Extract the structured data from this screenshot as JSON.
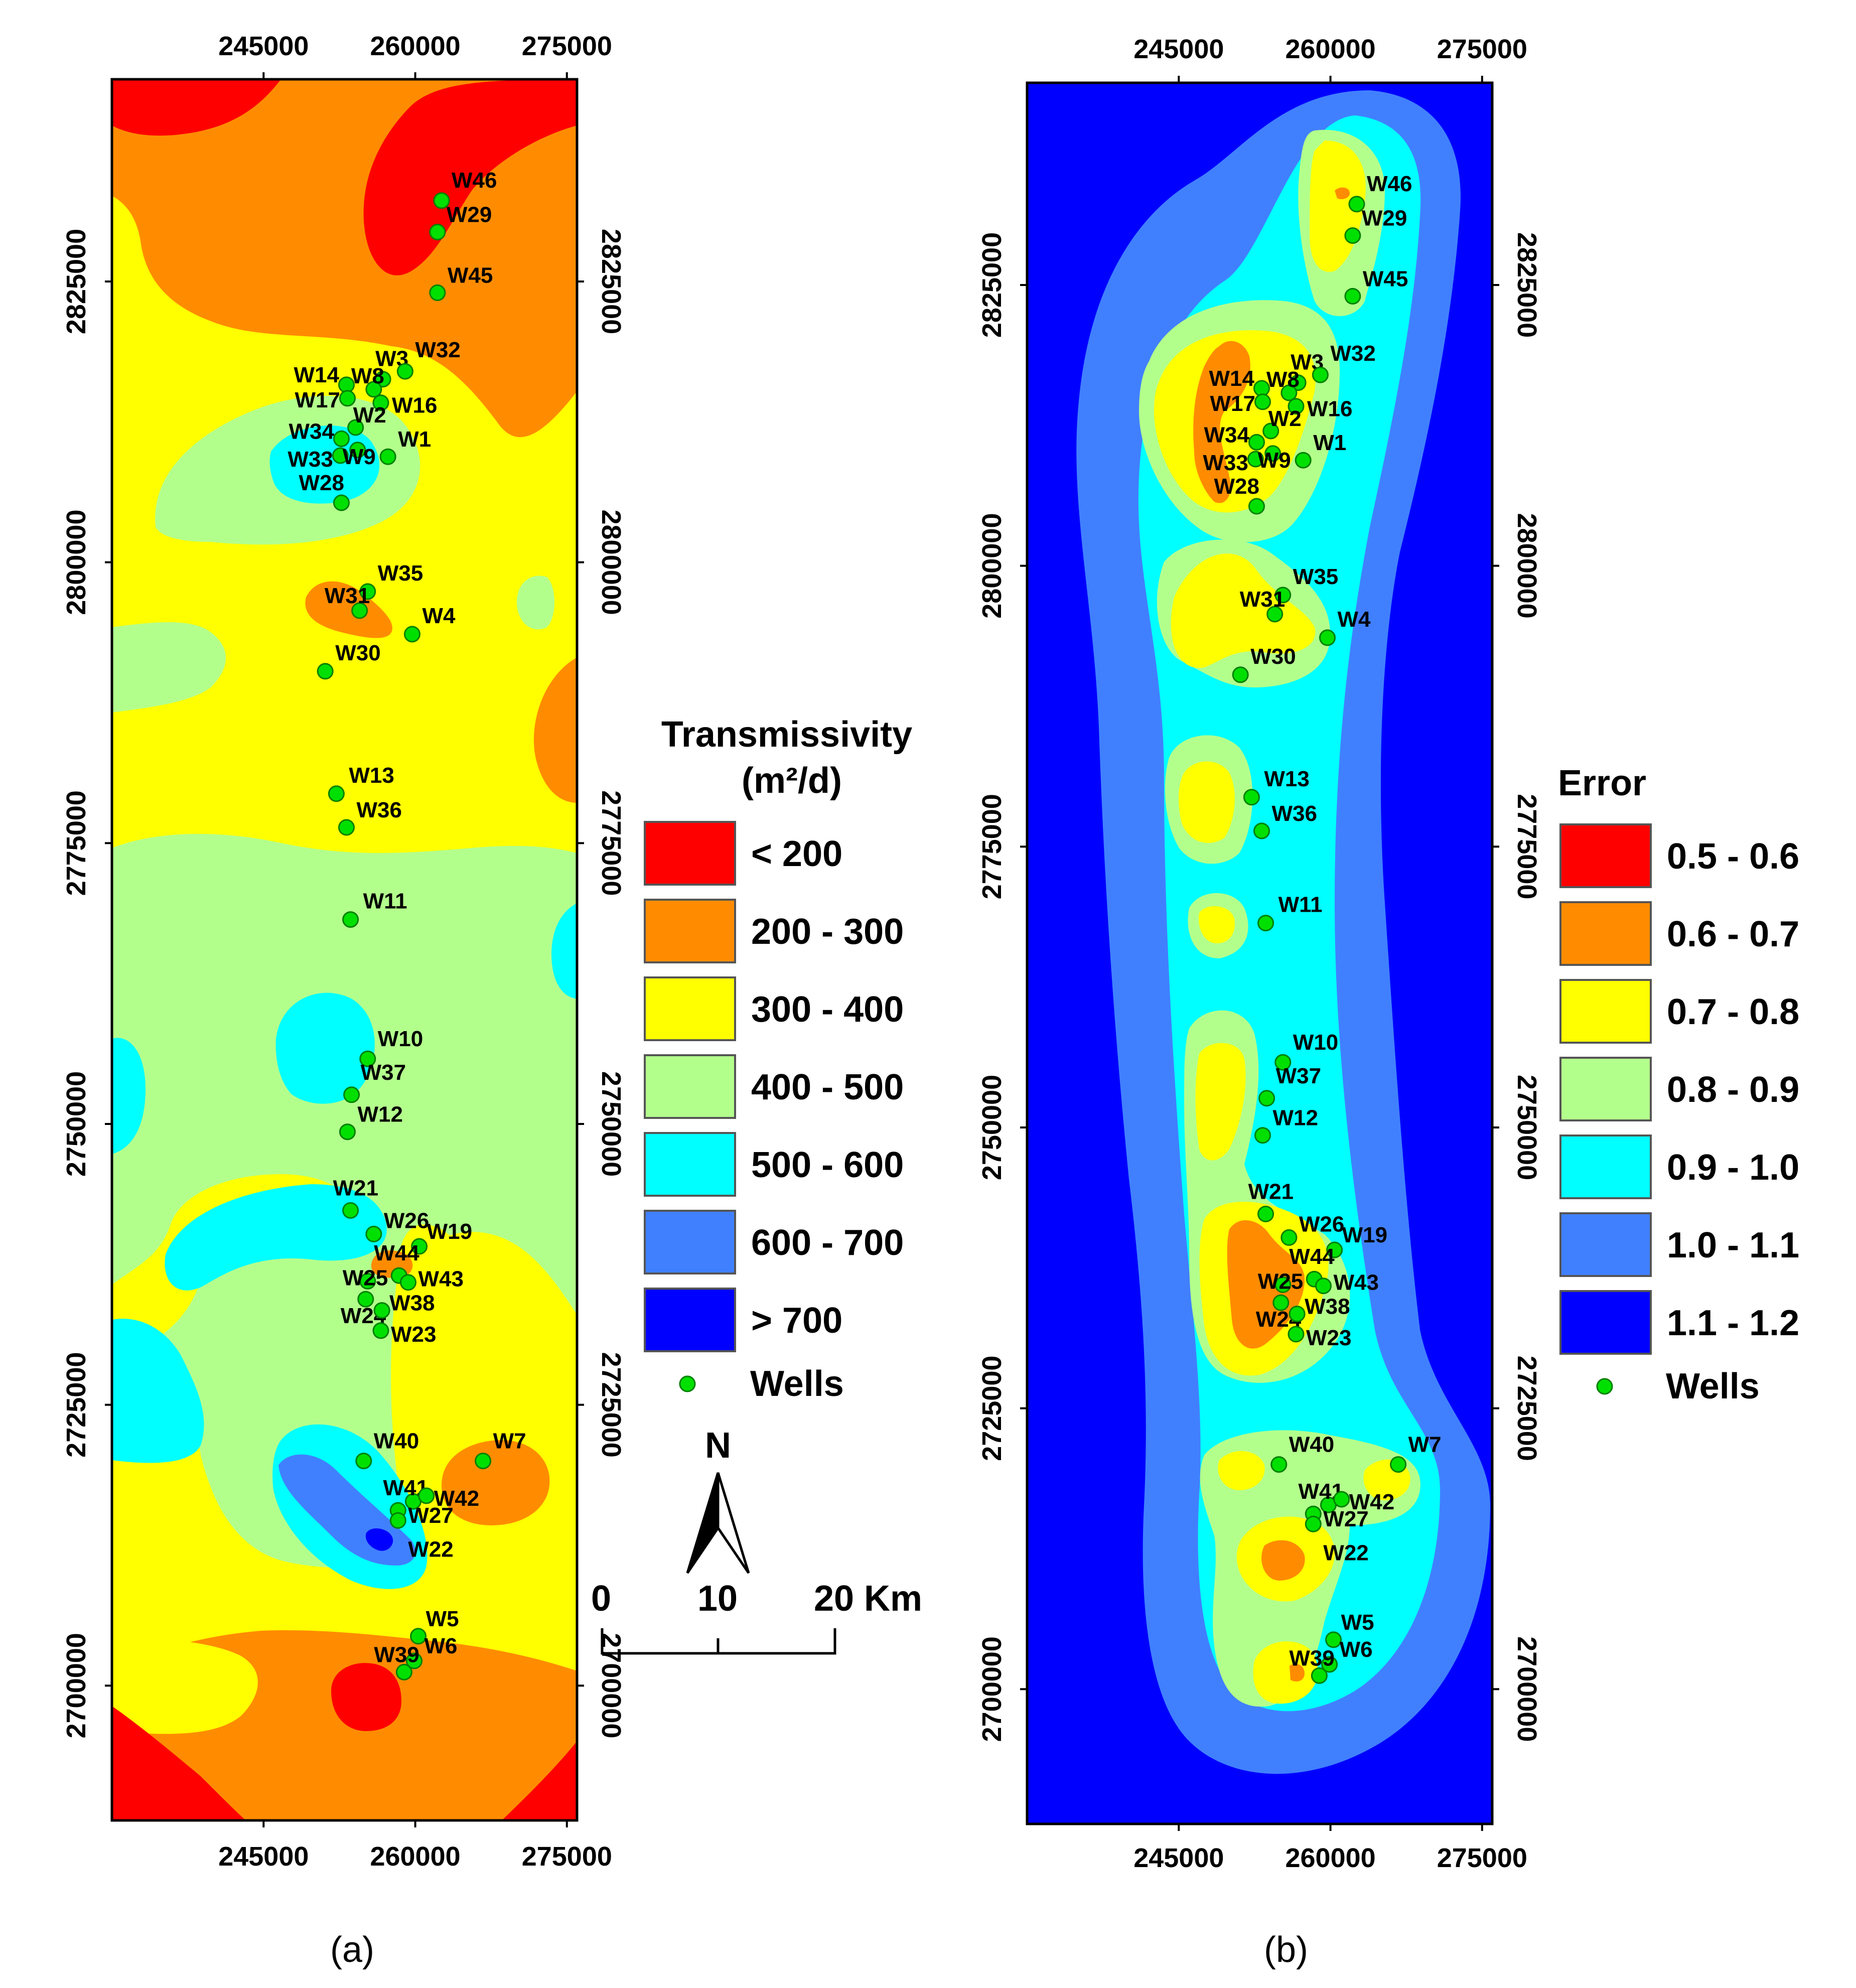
{
  "panels": {
    "a": {
      "caption": "(a)",
      "legend_title_line1": "Transmissivity",
      "legend_title_line2": "(m²/d)",
      "legend": [
        {
          "label": "< 200",
          "color": "#ff0000"
        },
        {
          "label": "200 - 300",
          "color": "#ff8c00"
        },
        {
          "label": "300 - 400",
          "color": "#ffff00"
        },
        {
          "label": "400 - 500",
          "color": "#b3ff8c"
        },
        {
          "label": "500 - 600",
          "color": "#00ffff"
        },
        {
          "label": "600 - 700",
          "color": "#4080ff"
        },
        {
          "label": "> 700",
          "color": "#0000ff"
        }
      ],
      "wells_label": "Wells"
    },
    "b": {
      "caption": "(b)",
      "legend_title": "Error",
      "legend": [
        {
          "label": "0.5 - 0.6",
          "color": "#ff0000"
        },
        {
          "label": "0.6 - 0.7",
          "color": "#ff8c00"
        },
        {
          "label": "0.7 - 0.8",
          "color": "#ffff00"
        },
        {
          "label": "0.8 - 0.9",
          "color": "#b3ff8c"
        },
        {
          "label": "0.9 - 1.0",
          "color": "#00ffff"
        },
        {
          "label": "1.0 - 1.1",
          "color": "#4080ff"
        },
        {
          "label": "1.1 - 1.2",
          "color": "#0000ff"
        }
      ],
      "wells_label": "Wells"
    }
  },
  "axes": {
    "x_ticks": [
      "245000",
      "260000",
      "275000"
    ],
    "y_ticks": [
      "2825000",
      "2800000",
      "2775000",
      "2750000",
      "2725000",
      "2700000"
    ]
  },
  "north_arrow": {
    "label": "N"
  },
  "scale_bar": {
    "labels": [
      "0",
      "10",
      "20 Km"
    ]
  },
  "colors": {
    "well_fill": "#00e000",
    "well_stroke": "#008000"
  },
  "wells": [
    {
      "name": "W46",
      "e": 262600,
      "n": 2832200
    },
    {
      "name": "W29",
      "e": 262200,
      "n": 2829400
    },
    {
      "name": "W45",
      "e": 262200,
      "n": 2824000
    },
    {
      "name": "W3",
      "e": 256800,
      "n": 2816300
    },
    {
      "name": "W32",
      "e": 259000,
      "n": 2817000
    },
    {
      "name": "W14",
      "e": 253200,
      "n": 2815800
    },
    {
      "name": "W8",
      "e": 255900,
      "n": 2815400
    },
    {
      "name": "W17",
      "e": 253300,
      "n": 2814600
    },
    {
      "name": "W16",
      "e": 256600,
      "n": 2814200
    },
    {
      "name": "W2",
      "e": 254100,
      "n": 2812000
    },
    {
      "name": "W34",
      "e": 252700,
      "n": 2811000
    },
    {
      "name": "W1",
      "e": 257300,
      "n": 2809400
    },
    {
      "name": "W33",
      "e": 252600,
      "n": 2809500
    },
    {
      "name": "W9",
      "e": 254300,
      "n": 2810000
    },
    {
      "name": "W28",
      "e": 252700,
      "n": 2805300
    },
    {
      "name": "W35",
      "e": 255300,
      "n": 2797400
    },
    {
      "name": "W31",
      "e": 254500,
      "n": 2795700
    },
    {
      "name": "W4",
      "e": 259700,
      "n": 2793600
    },
    {
      "name": "W30",
      "e": 251100,
      "n": 2790300
    },
    {
      "name": "W13",
      "e": 252200,
      "n": 2779400
    },
    {
      "name": "W36",
      "e": 253200,
      "n": 2776400
    },
    {
      "name": "W11",
      "e": 253600,
      "n": 2768200
    },
    {
      "name": "W10",
      "e": 255300,
      "n": 2755800
    },
    {
      "name": "W37",
      "e": 253700,
      "n": 2752600
    },
    {
      "name": "W12",
      "e": 253300,
      "n": 2749300
    },
    {
      "name": "W21",
      "e": 253600,
      "n": 2742300
    },
    {
      "name": "W26",
      "e": 255900,
      "n": 2740200
    },
    {
      "name": "W19",
      "e": 260400,
      "n": 2739100
    },
    {
      "name": "W44",
      "e": 258400,
      "n": 2736500
    },
    {
      "name": "W43",
      "e": 259300,
      "n": 2735900
    },
    {
      "name": "W25",
      "e": 255300,
      "n": 2736000
    },
    {
      "name": "W24",
      "e": 255100,
      "n": 2734400
    },
    {
      "name": "W38",
      "e": 256700,
      "n": 2733400
    },
    {
      "name": "W23",
      "e": 256600,
      "n": 2731600
    },
    {
      "name": "W40",
      "e": 254900,
      "n": 2720000
    },
    {
      "name": "W7",
      "e": 266700,
      "n": 2720000
    },
    {
      "name": "W41",
      "e": 259800,
      "n": 2716400
    },
    {
      "name": "W42",
      "e": 261100,
      "n": 2716900
    },
    {
      "name": "W27",
      "e": 258300,
      "n": 2715600
    },
    {
      "name": "W22",
      "e": 258300,
      "n": 2714700
    },
    {
      "name": "W5",
      "e": 260300,
      "n": 2704400
    },
    {
      "name": "W6",
      "e": 259900,
      "n": 2702200
    },
    {
      "name": "W39",
      "e": 258900,
      "n": 2701200
    }
  ]
}
